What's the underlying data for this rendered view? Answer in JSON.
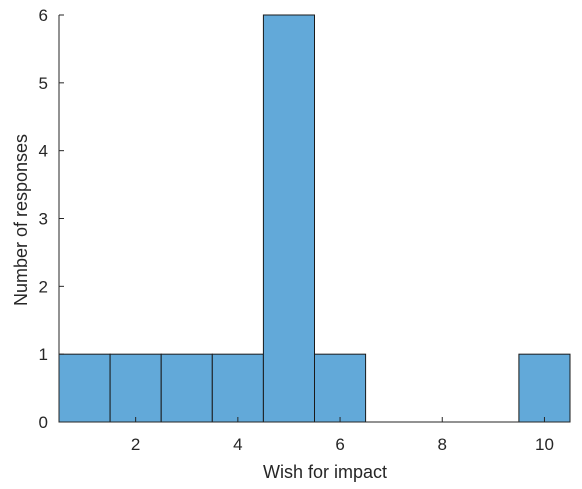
{
  "chart_data": {
    "type": "bar",
    "subtype": "histogram",
    "bin_width": 1,
    "bins": [
      {
        "start": 0.5,
        "end": 1.5,
        "count": 1
      },
      {
        "start": 1.5,
        "end": 2.5,
        "count": 1
      },
      {
        "start": 2.5,
        "end": 3.5,
        "count": 1
      },
      {
        "start": 3.5,
        "end": 4.5,
        "count": 1
      },
      {
        "start": 4.5,
        "end": 5.5,
        "count": 6
      },
      {
        "start": 5.5,
        "end": 6.5,
        "count": 1
      },
      {
        "start": 9.5,
        "end": 10.5,
        "count": 1
      }
    ],
    "xlabel": "Wish for impact",
    "ylabel": "Number of responses",
    "xlim": [
      0.5,
      10.5
    ],
    "ylim": [
      0,
      6
    ],
    "xticks": [
      "2",
      "4",
      "6",
      "8",
      "10"
    ],
    "yticks": [
      "0",
      "1",
      "2",
      "3",
      "4",
      "5",
      "6"
    ],
    "bar_color": "#62a9d9",
    "edge_color": "#1a1a1a",
    "grid": false
  }
}
